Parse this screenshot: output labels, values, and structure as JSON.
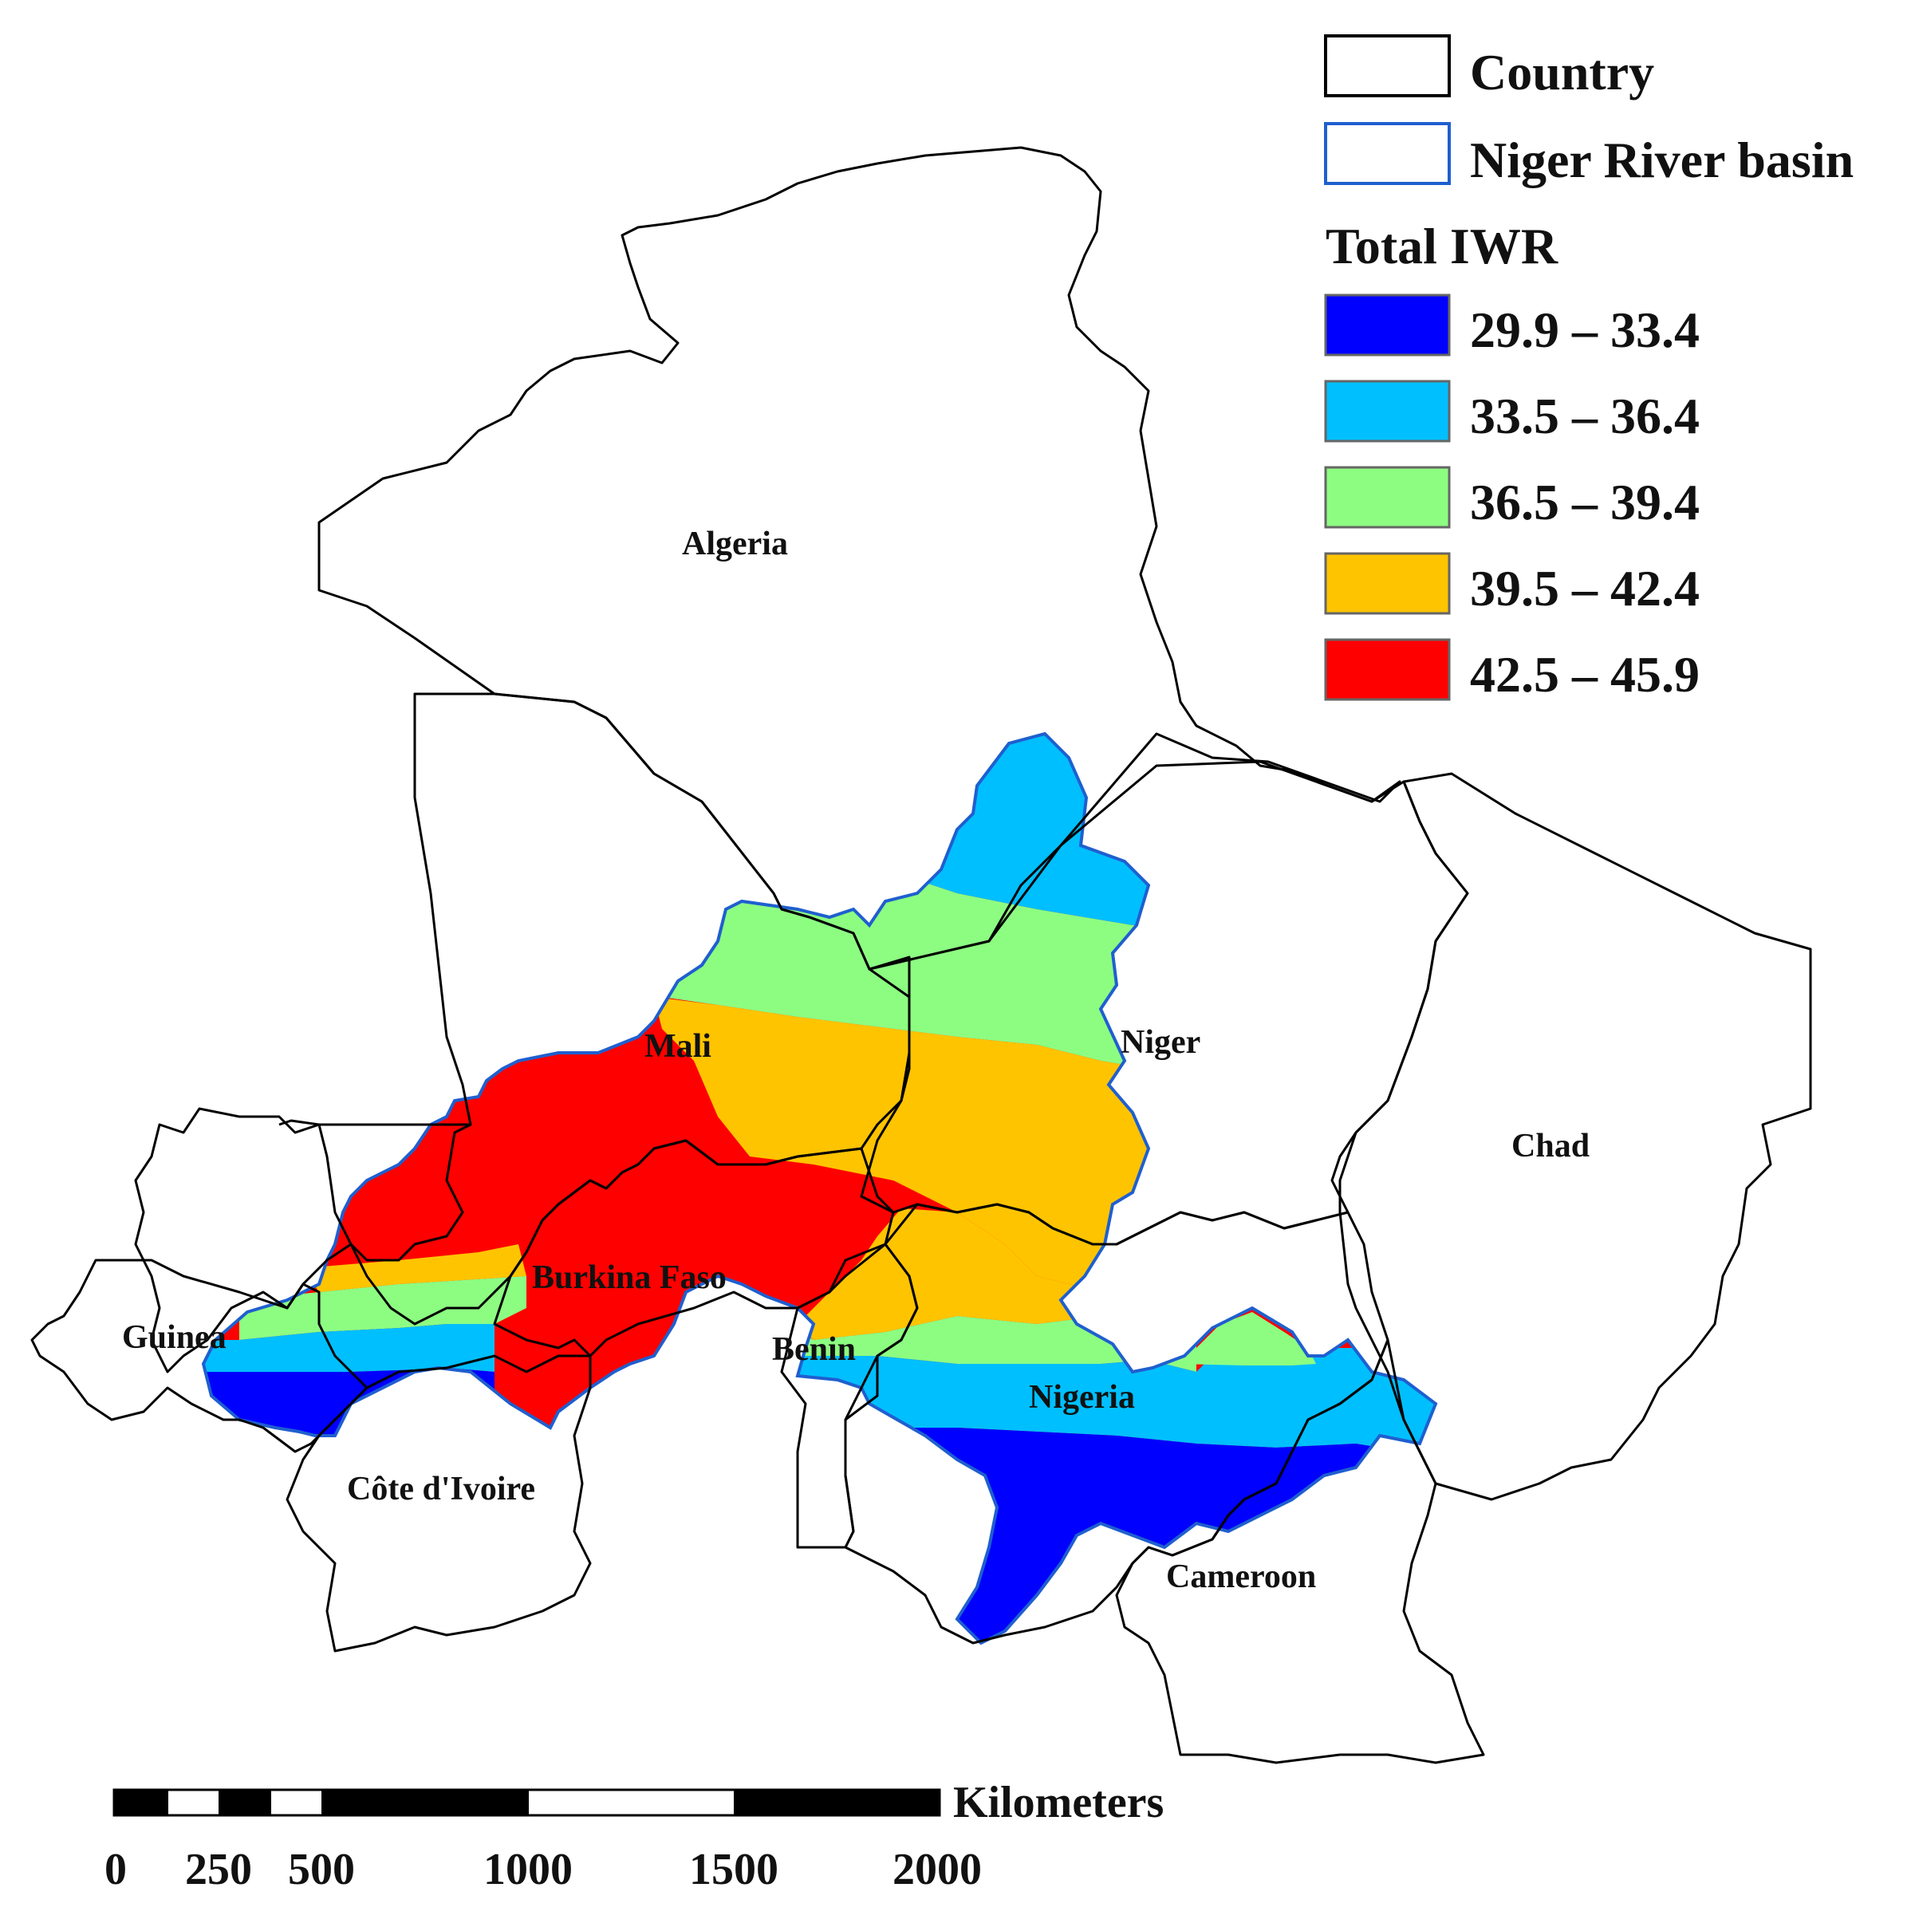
{
  "legend": {
    "country_label": "Country",
    "basin_label": "Niger River basin",
    "title": "Total IWR",
    "classes": [
      {
        "range": "29.9 – 33.4",
        "color": "#0000ff"
      },
      {
        "range": "33.5 – 36.4",
        "color": "#00bfff"
      },
      {
        "range": "36.5 – 39.4",
        "color": "#8dfd82"
      },
      {
        "range": "39.5 – 42.4",
        "color": "#ffc400"
      },
      {
        "range": "42.5 – 45.9",
        "color": "#ff0000"
      }
    ],
    "country_outline_color": "#000000",
    "basin_outline_color": "#1f5fcf"
  },
  "countries": {
    "algeria": "Algeria",
    "mali": "Mali",
    "niger": "Niger",
    "chad": "Chad",
    "burkina_faso": "Burkina Faso",
    "guinea": "Guinea",
    "benin": "Benin",
    "nigeria": "Nigeria",
    "cote_divoire": "Côte d'Ivoire",
    "cameroon": "Cameroon"
  },
  "scale_bar": {
    "unit": "Kilometers",
    "ticks": [
      "0",
      "250",
      "500",
      "1000",
      "1500",
      "2000"
    ]
  }
}
